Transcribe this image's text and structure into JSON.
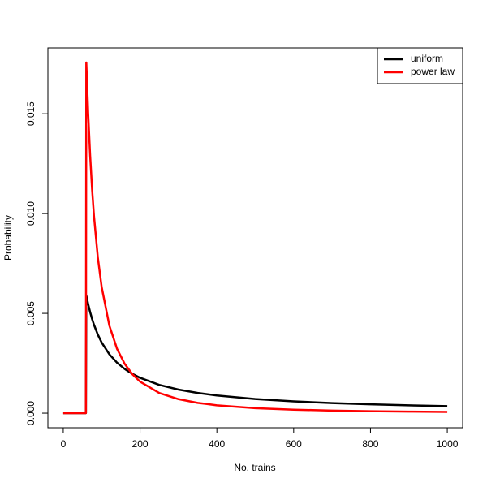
{
  "chart_data": {
    "type": "line",
    "x_label": "No. trains",
    "y_label": "Probability",
    "x": [
      0,
      59,
      60,
      65,
      70,
      75,
      80,
      90,
      100,
      120,
      140,
      160,
      180,
      200,
      250,
      300,
      350,
      400,
      500,
      600,
      700,
      800,
      900,
      1000
    ],
    "series": [
      {
        "name": "uniform",
        "color": "#000000",
        "values": [
          0,
          0,
          0.005905,
          0.005451,
          0.005062,
          0.004724,
          0.004429,
          0.003937,
          0.003543,
          0.002953,
          0.002531,
          0.002215,
          0.001968,
          0.001772,
          0.001417,
          0.001181,
          0.001012,
          0.000886,
          0.000709,
          0.000591,
          0.000506,
          0.000443,
          0.000394,
          0.000354
        ]
      },
      {
        "name": "power law",
        "color": "#ff0000",
        "values": [
          0,
          0,
          0.01757,
          0.01497,
          0.01291,
          0.011246,
          0.009884,
          0.00781,
          0.006326,
          0.004393,
          0.003227,
          0.002471,
          0.001952,
          0.001582,
          0.001012,
          0.000703,
          0.000516,
          0.000395,
          0.000253,
          0.000176,
          0.000129,
          9.88e-05,
          7.81e-05,
          6.33e-05
        ]
      }
    ],
    "xlim": [
      -40,
      1040
    ],
    "ylim": [
      -0.00073,
      0.0183
    ],
    "xticks": [
      0,
      200,
      400,
      600,
      800,
      1000
    ],
    "yticks": [
      {
        "value": 0,
        "label": "0.000"
      },
      0.005,
      {
        "value": 0.01,
        "label": "0.010"
      },
      0.015
    ],
    "legend": "top-right",
    "grid": false
  }
}
